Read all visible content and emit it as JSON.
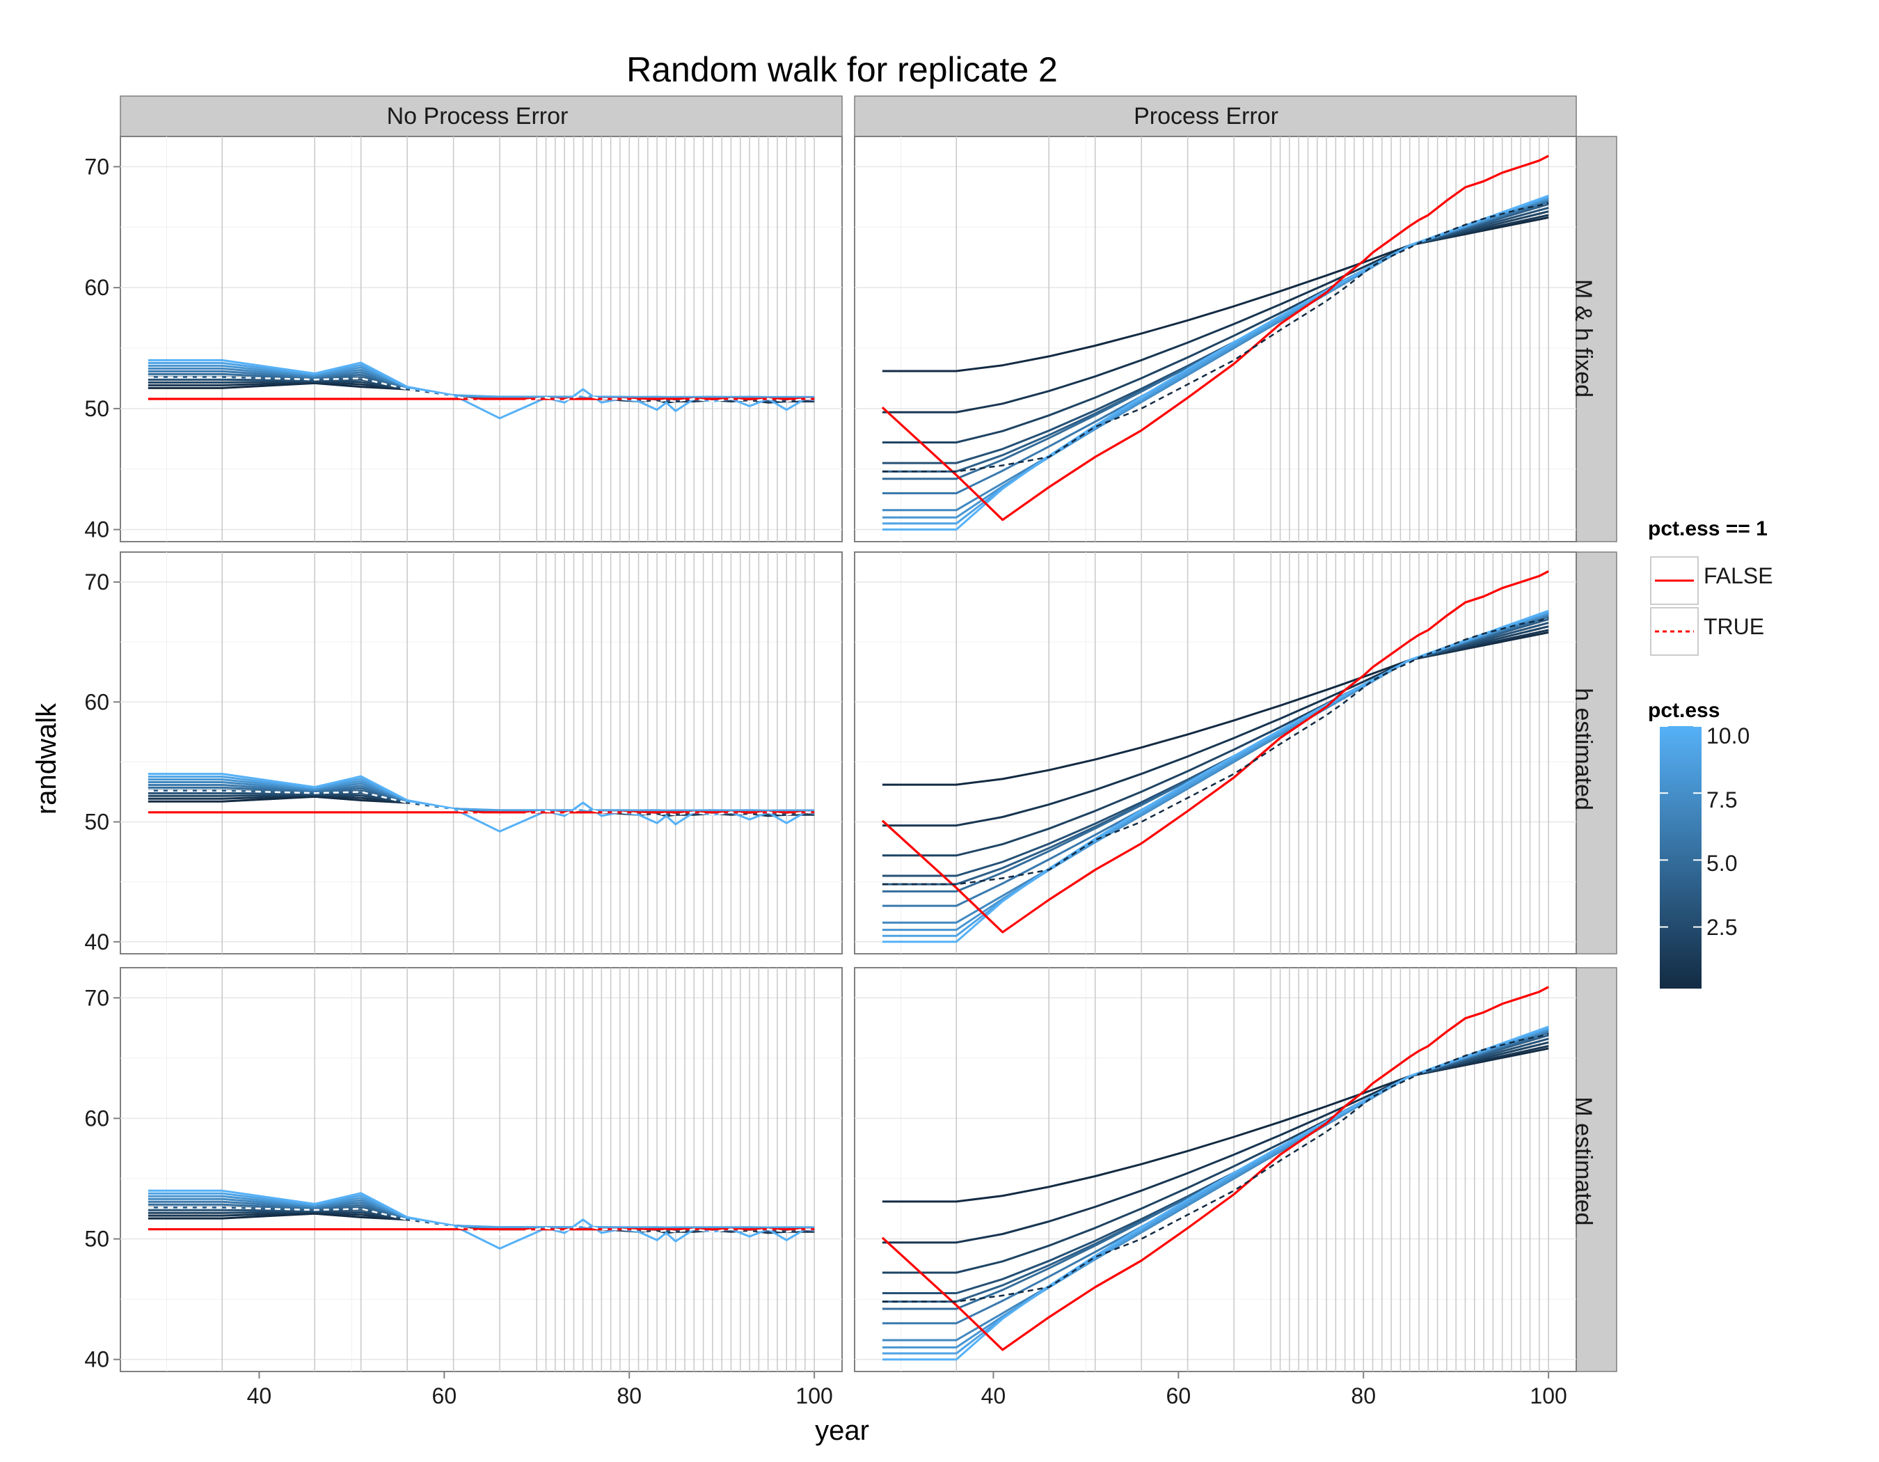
{
  "chart_data": {
    "type": "line",
    "title": "Random walk for replicate 2",
    "xlabel": "year",
    "ylabel": "randwalk",
    "columns": [
      "No Process Error",
      "Process Error"
    ],
    "rows": [
      "M & h fixed",
      "h estimated",
      "M estimated"
    ],
    "xlim": [
      25,
      103
    ],
    "ylim": [
      39,
      72.5
    ],
    "x_ticks": [
      40,
      60,
      80,
      100
    ],
    "y_ticks": [
      40,
      50,
      60,
      70
    ],
    "year_gridlines": [
      36,
      46,
      51,
      56,
      61,
      66,
      70,
      71,
      72,
      73,
      74,
      75,
      76,
      77,
      78,
      79,
      80,
      81,
      82,
      83,
      84,
      85,
      86,
      87,
      88,
      89,
      90,
      91,
      92,
      93,
      94,
      95,
      96,
      97,
      98,
      99,
      100
    ],
    "grid": true,
    "panels": {
      "No Process Error": {
        "x": [
          28,
          36,
          46,
          51,
          56,
          61,
          66,
          71,
          73,
          75,
          77,
          79,
          81,
          83,
          84,
          85,
          87,
          89,
          91,
          93,
          95,
          97,
          99,
          100
        ],
        "series": [
          {
            "name": "FALSE",
            "color": "#FF0000",
            "dashed": false,
            "values": [
              50.8,
              50.8,
              50.8,
              50.8,
              50.8,
              50.8,
              50.8,
              50.8,
              50.8,
              50.8,
              50.8,
              50.8,
              50.8,
              50.8,
              50.8,
              50.8,
              50.8,
              50.8,
              50.8,
              50.8,
              50.8,
              50.8,
              50.8,
              50.8
            ]
          },
          {
            "name": "TRUE",
            "color": "#FFFFFF",
            "dashed": true,
            "values": [
              52.6,
              52.6,
              52.4,
              52.5,
              51.6,
              51.0,
              50.4,
              50.9,
              50.7,
              51.1,
              50.8,
              50.8,
              50.7,
              50.6,
              50.7,
              50.6,
              50.8,
              50.6,
              50.8,
              50.6,
              50.8,
              50.6,
              50.8,
              50.8
            ]
          }
        ],
        "envelope": {
          "pct_ess": [
            0.2,
            1,
            2,
            3,
            4,
            5,
            6,
            7,
            8,
            9,
            10
          ],
          "low": [
            51.7,
            51.7,
            52.1,
            51.8,
            51.6,
            51.1,
            50.8,
            50.8,
            50.8,
            50.8,
            50.8,
            50.7,
            50.6,
            50.7,
            50.5,
            50.6,
            50.6,
            50.7,
            50.6,
            50.7,
            50.5,
            50.6,
            50.6,
            50.6
          ],
          "high": [
            54.0,
            54.0,
            52.9,
            53.8,
            51.8,
            51.1,
            51.0,
            51.0,
            51.0,
            51.0,
            51.0,
            51.0,
            51.0,
            51.0,
            51.0,
            51.0,
            51.0,
            51.0,
            51.0,
            51.0,
            51.0,
            51.0,
            51.0,
            51.0
          ],
          "high_dip": [
            54.0,
            54.0,
            52.9,
            53.8,
            51.8,
            51.1,
            49.2,
            50.9,
            50.5,
            51.6,
            50.5,
            50.8,
            50.6,
            49.9,
            50.5,
            49.8,
            50.8,
            50.6,
            50.8,
            50.2,
            50.8,
            49.9,
            50.8,
            50.7
          ]
        }
      },
      "Process Error": {
        "x": [
          28,
          36,
          41,
          46,
          51,
          56,
          61,
          66,
          71,
          76,
          78,
          80,
          81,
          83,
          85,
          86,
          87,
          89,
          91,
          93,
          95,
          97,
          99,
          100
        ],
        "series": [
          {
            "name": "FALSE",
            "color": "#FF0000",
            "dashed": false,
            "values": [
              50.1,
              44.5,
              40.8,
              43.5,
              46.0,
              48.2,
              50.9,
              53.7,
              57.0,
              59.6,
              61.0,
              62.2,
              62.9,
              64.0,
              65.1,
              65.6,
              66.0,
              67.2,
              68.3,
              68.8,
              69.5,
              70.0,
              70.5,
              70.9
            ]
          },
          {
            "name": "TRUE",
            "color": "#132B43",
            "dashed": true,
            "values": [
              44.8,
              44.8,
              45.3,
              46.0,
              48.5,
              50.0,
              52.0,
              54.0,
              56.5,
              58.9,
              60.0,
              61.2,
              61.8,
              62.6,
              63.3,
              63.7,
              64.0,
              64.6,
              65.2,
              65.7,
              66.1,
              66.5,
              66.8,
              67.0
            ]
          }
        ],
        "envelope": {
          "pct_ess": [
            0.2,
            1,
            2,
            3,
            4,
            5,
            6,
            7,
            8,
            9,
            10
          ],
          "start_levels": [
            53.1,
            49.7,
            47.2,
            45.5,
            44.8,
            44.2,
            43.0,
            41.6,
            41.0,
            40.5,
            40.0
          ],
          "converge_x": 85,
          "converge_y": 63.5,
          "end_levels": [
            65.8,
            66.0,
            66.3,
            66.6,
            66.9,
            67.1,
            67.2,
            67.3,
            67.4,
            67.5,
            67.6
          ]
        }
      }
    },
    "legend": {
      "line_title": "pct.ess == 1",
      "line_entries": [
        {
          "label": "FALSE",
          "color": "#FF0000",
          "dashed": false
        },
        {
          "label": "TRUE",
          "color": "#FF0000",
          "dashed": true
        }
      ],
      "color_title": "pct.ess",
      "colorbar_ticks": [
        "10.0",
        "7.5",
        "5.0",
        "2.5"
      ],
      "colorbar_values": [
        10,
        7.5,
        5,
        2.5
      ],
      "colorbar_range": [
        0.2,
        10
      ],
      "colorbar_low": "#132B43",
      "colorbar_high": "#56B1F7",
      "placement": "right"
    }
  }
}
